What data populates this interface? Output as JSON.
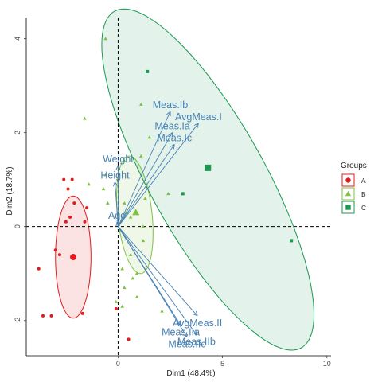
{
  "chart_data": {
    "type": "scatter",
    "title": "",
    "xlabel": "Dim1 (48.4%)",
    "ylabel": "Dim2 (18.7%)",
    "xlim": [
      -4.4,
      10.2
    ],
    "ylim": [
      -2.75,
      4.45
    ],
    "xticks": [
      0,
      5,
      10
    ],
    "yticks": [
      -2,
      0,
      2,
      4
    ],
    "grid": false,
    "reference_lines": {
      "x": 0,
      "y": 0
    },
    "legend": {
      "title": "Groups",
      "placement": "right"
    },
    "groups": [
      {
        "name": "A",
        "color": "#E41A1C",
        "marker": "circle",
        "points": [
          [
            -2.6,
            1.0
          ],
          [
            -2.2,
            1.0
          ],
          [
            -2.4,
            0.8
          ],
          [
            -2.1,
            0.5
          ],
          [
            -2.5,
            0.1
          ],
          [
            -2.3,
            0.2
          ],
          [
            -1.6,
            0.1
          ],
          [
            -1.5,
            0.4
          ],
          [
            -3.0,
            -0.5
          ],
          [
            -2.8,
            -0.6
          ],
          [
            -3.8,
            -0.9
          ],
          [
            -3.6,
            -1.9
          ],
          [
            -3.2,
            -1.9
          ],
          [
            -1.7,
            -1.85
          ],
          [
            -0.1,
            -1.75
          ],
          [
            0.5,
            -2.4
          ]
        ],
        "centroid": [
          -2.15,
          -0.65
        ],
        "ellipse": {
          "cx": -2.15,
          "cy": -0.65,
          "rx": 0.85,
          "ry": 1.3,
          "angle": 0
        }
      },
      {
        "name": "B",
        "color": "#7FC241",
        "marker": "triangle",
        "points": [
          [
            -0.6,
            4.0
          ],
          [
            -1.6,
            2.3
          ],
          [
            1.1,
            2.6
          ],
          [
            1.5,
            1.9
          ],
          [
            1.1,
            1.5
          ],
          [
            0.3,
            1.4
          ],
          [
            -0.6,
            1.1
          ],
          [
            -0.7,
            0.8
          ],
          [
            -0.5,
            0.5
          ],
          [
            0.4,
            0.3
          ],
          [
            0.6,
            0.2
          ],
          [
            1.3,
            0.6
          ],
          [
            1.2,
            0.0
          ],
          [
            1.2,
            -0.3
          ],
          [
            0.6,
            -0.6
          ],
          [
            0.2,
            -0.9
          ],
          [
            0.9,
            -1.0
          ],
          [
            0.7,
            -1.1
          ],
          [
            0.3,
            -1.3
          ],
          [
            0.9,
            -1.5
          ],
          [
            -0.1,
            -1.6
          ],
          [
            0.2,
            -1.7
          ],
          [
            2.1,
            -1.8
          ],
          [
            -1.4,
            0.9
          ],
          [
            2.4,
            0.7
          ],
          [
            0.3,
            0.5
          ]
        ],
        "centroid": [
          0.85,
          0.3
        ],
        "ellipse": {
          "cx": 0.8,
          "cy": 0.25,
          "rx": 1.3,
          "ry": 0.8,
          "angle": -70
        }
      },
      {
        "name": "C",
        "color": "#1A9850",
        "marker": "square",
        "points": [
          [
            1.4,
            3.3
          ],
          [
            3.1,
            0.7
          ],
          [
            8.3,
            -0.3
          ]
        ],
        "centroid": [
          4.3,
          1.25
        ],
        "ellipse": {
          "cx": 4.3,
          "cy": 1.0,
          "rx": 5.95,
          "ry": 1.9,
          "angle": -33.3
        }
      }
    ],
    "variables": [
      {
        "name": "Meas.Ib",
        "x": 2.5,
        "y": 2.45
      },
      {
        "name": "AvgMeas.I",
        "x": 3.85,
        "y": 2.2
      },
      {
        "name": "Meas.Ia",
        "x": 2.6,
        "y": 2.0
      },
      {
        "name": "Meas.Ic",
        "x": 2.7,
        "y": 1.75
      },
      {
        "name": "Weight",
        "x": 0.0,
        "y": 1.3
      },
      {
        "name": "Height",
        "x": -0.15,
        "y": 0.95
      },
      {
        "name": "Age",
        "x": -0.05,
        "y": 0.1
      },
      {
        "name": "AvgMeas.II",
        "x": 3.8,
        "y": -1.9
      },
      {
        "name": "Meas.IIa",
        "x": 3.0,
        "y": -2.1
      },
      {
        "name": "Meas.IIc",
        "x": 3.3,
        "y": -2.35
      },
      {
        "name": "Meas.IIb",
        "x": 3.75,
        "y": -2.3
      }
    ]
  }
}
